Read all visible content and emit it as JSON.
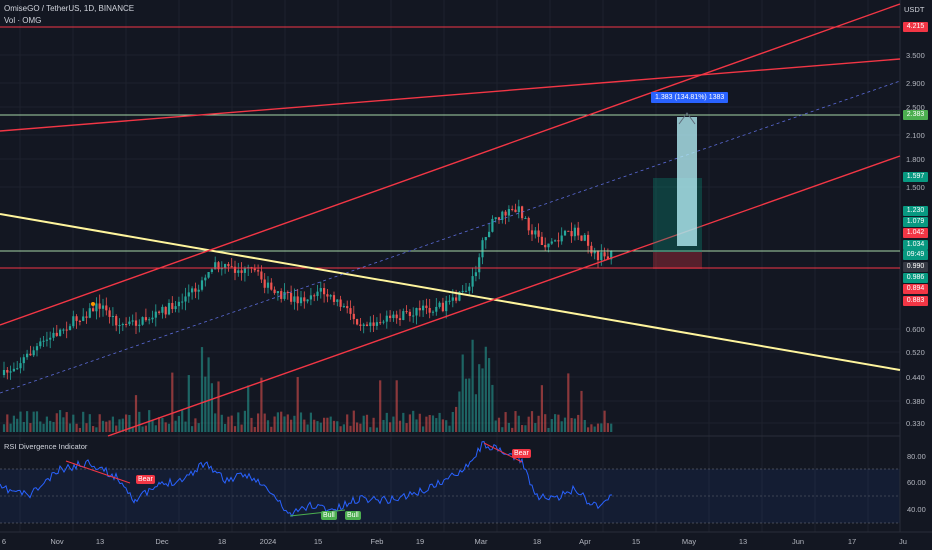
{
  "legend": {
    "symbol_line": "OmiseGO / TetherUS, 1D, BINANCE",
    "volume_line": "Vol · OMG"
  },
  "axis": {
    "currency": "USDT",
    "price_ticks": [
      "3.500",
      "2.900",
      "2.500",
      "2.100",
      "1.800",
      "1.500",
      "0.600",
      "0.520",
      "0.440",
      "0.380",
      "0.330"
    ],
    "time_ticks": [
      "6",
      "Nov",
      "13",
      "Dec",
      "18",
      "2024",
      "15",
      "Feb",
      "19",
      "Mar",
      "18",
      "Apr",
      "15",
      "May",
      "13",
      "Jun",
      "17",
      "Ju"
    ]
  },
  "price_tags": [
    {
      "text": "4.215",
      "color": "#f23645"
    },
    {
      "text": "2.383",
      "color": "#4caf50"
    },
    {
      "text": "1.597",
      "color": "#089981"
    },
    {
      "text": "1.230",
      "color": "#089981"
    },
    {
      "text": "1.079",
      "color": "#089981"
    },
    {
      "text": "1.042",
      "color": "#f23645"
    },
    {
      "text": "1.034",
      "color": "#089981"
    },
    {
      "text": "09:49",
      "color": "#089981"
    },
    {
      "text": "0.990",
      "color": "#363a45"
    },
    {
      "text": "0.986",
      "color": "#089981"
    },
    {
      "text": "0.894",
      "color": "#f23645"
    },
    {
      "text": "0.883",
      "color": "#f23645"
    }
  ],
  "position_tool": {
    "label": "1.383 (134.81%) 1383"
  },
  "rsi": {
    "title": "RSI Divergence Indicator",
    "ticks": [
      "80.00",
      "60.00",
      "40.00"
    ],
    "labels": [
      {
        "text": "Bear",
        "kind": "bear"
      },
      {
        "text": "Bull",
        "kind": "bull"
      },
      {
        "text": "Bull",
        "kind": "bull"
      },
      {
        "text": "Bear",
        "kind": "bear"
      }
    ]
  },
  "colors": {
    "up": "#26a69a",
    "down": "#ef5350",
    "resistance_red": "#f23645",
    "support_green": "#a5d6a7",
    "trend_yellow": "#fff59d",
    "rsi_line": "#2962ff"
  }
}
